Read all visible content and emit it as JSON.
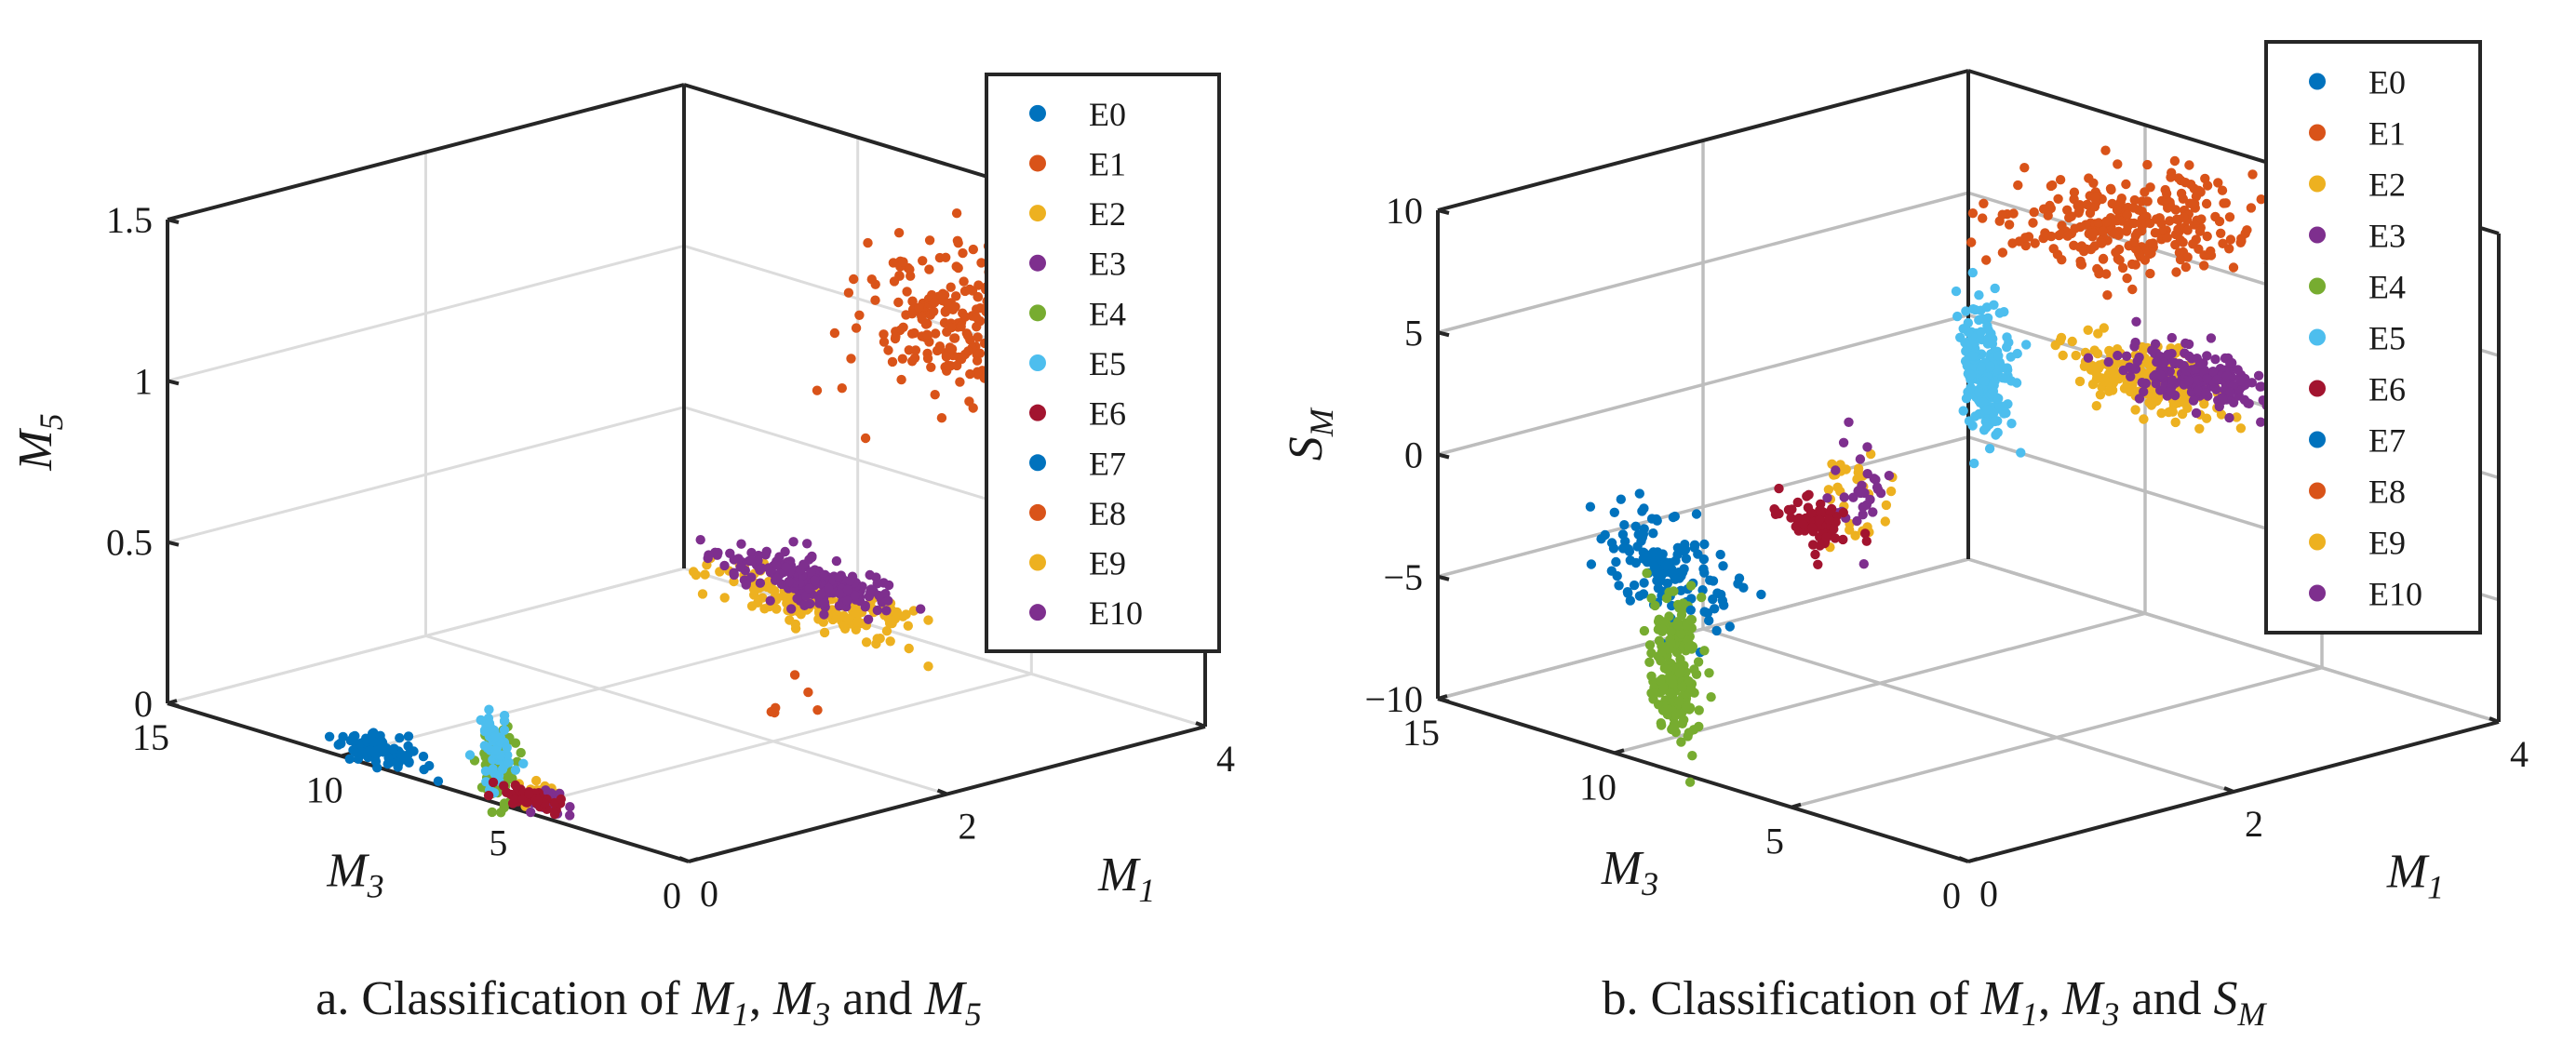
{
  "legend_entries": [
    "E0",
    "E1",
    "E2",
    "E3",
    "E4",
    "E5",
    "E6",
    "E7",
    "E8",
    "E9",
    "E10"
  ],
  "colors": {
    "E0": "#0072BD",
    "E1": "#D95319",
    "E2": "#EDB120",
    "E3": "#7E2F8E",
    "E4": "#77AC30",
    "E5": "#4DBEEE",
    "E6": "#A2142F",
    "E7": "#0072BD",
    "E8": "#D95319",
    "E9": "#EDB120",
    "E10": "#7E2F8E"
  },
  "chart_data": [
    {
      "type": "scatter",
      "caption_prefix": "a. Classification of ",
      "caption_vars": [
        "M1",
        "M3",
        "M5"
      ],
      "caption_text": "a. Classification of M1, M3 and M5",
      "axes": {
        "x": {
          "label": "M1",
          "lim": [
            0,
            4
          ],
          "ticks": [
            "0",
            "2",
            "4"
          ]
        },
        "y": {
          "label": "M3",
          "lim": [
            0,
            15
          ],
          "ticks": [
            "0",
            "5",
            "10",
            "15"
          ]
        },
        "z": {
          "label": "M5",
          "lim": [
            0,
            1.5
          ],
          "ticks": [
            "0",
            "0.5",
            "1",
            "1.5"
          ]
        }
      },
      "grid": true,
      "legend_position": "top-right",
      "clusters": [
        {
          "name": "E0",
          "center": [
            0.08,
            9.2,
            0.03
          ],
          "spread": [
            0.05,
            0.6,
            0.02
          ],
          "count": 70
        },
        {
          "name": "E1",
          "center": [
            3.6,
            5.5,
            1.12
          ],
          "spread": [
            0.25,
            0.9,
            0.12
          ],
          "count": 250
        },
        {
          "name": "E2",
          "center": [
            0.05,
            4.4,
            0.05
          ],
          "spread": [
            0.04,
            0.3,
            0.02
          ],
          "count": 25
        },
        {
          "name": "E3",
          "center": [
            0.05,
            4.2,
            0.04
          ],
          "spread": [
            0.04,
            0.3,
            0.02
          ],
          "count": 25
        },
        {
          "name": "E4",
          "center": [
            0.07,
            5.8,
            0.11
          ],
          "spread": [
            0.04,
            0.2,
            0.06
          ],
          "count": 110
        },
        {
          "name": "E5",
          "center": [
            0.07,
            5.8,
            0.15
          ],
          "spread": [
            0.04,
            0.2,
            0.06
          ],
          "count": 60
        },
        {
          "name": "E6",
          "center": [
            0.07,
            4.9,
            0.03
          ],
          "spread": [
            0.04,
            0.4,
            0.01
          ],
          "count": 50
        },
        {
          "name": "E7",
          "center": [
            0.1,
            9.1,
            0.06
          ],
          "spread": [
            0.05,
            0.4,
            0.02
          ],
          "count": 25
        },
        {
          "name": "E8",
          "center": [
            1.3,
            2.0,
            0.3
          ],
          "spread": [
            0.1,
            0.6,
            0.05
          ],
          "count": 6
        },
        {
          "name": "E9",
          "center": [
            3.8,
            10.5,
            0.06
          ],
          "spread": [
            0.1,
            1.4,
            0.03
          ],
          "count": 200
        },
        {
          "name": "E10",
          "center": [
            3.8,
            10.6,
            0.13
          ],
          "spread": [
            0.1,
            1.3,
            0.03
          ],
          "count": 200
        }
      ]
    },
    {
      "type": "scatter",
      "caption_prefix": "b. Classification of ",
      "caption_vars": [
        "M1",
        "M3",
        "SM"
      ],
      "caption_text": "b. Classification of M1, M3 and SM",
      "axes": {
        "x": {
          "label": "M1",
          "lim": [
            0,
            4
          ],
          "ticks": [
            "0",
            "2",
            "4"
          ]
        },
        "y": {
          "label": "M3",
          "lim": [
            0,
            15
          ],
          "ticks": [
            "0",
            "5",
            "10",
            "15"
          ]
        },
        "z": {
          "label": "SM",
          "lim": [
            -10,
            10
          ],
          "ticks": [
            "−10",
            "−5",
            "0",
            "5",
            "10"
          ]
        }
      },
      "grid": true,
      "legend_position": "top-right",
      "clusters": [
        {
          "name": "E0",
          "center": [
            0.12,
            9.2,
            -2.2
          ],
          "spread": [
            0.05,
            0.8,
            1.2
          ],
          "count": 120
        },
        {
          "name": "E1",
          "center": [
            3.3,
            7.6,
            8.0
          ],
          "spread": [
            0.35,
            1.0,
            0.8
          ],
          "count": 250
        },
        {
          "name": "E2",
          "center": [
            0.05,
            3.5,
            3.5
          ],
          "spread": [
            0.05,
            0.4,
            1.0
          ],
          "count": 30
        },
        {
          "name": "E3",
          "center": [
            0.05,
            3.4,
            3.4
          ],
          "spread": [
            0.05,
            0.4,
            1.0
          ],
          "count": 30
        },
        {
          "name": "E4",
          "center": [
            0.05,
            8.5,
            -6.0
          ],
          "spread": [
            0.05,
            0.3,
            1.4
          ],
          "count": 200
        },
        {
          "name": "E5",
          "center": [
            1.2,
            4.0,
            6.5
          ],
          "spread": [
            0.05,
            0.3,
            1.5
          ],
          "count": 200
        },
        {
          "name": "E6",
          "center": [
            0.05,
            4.5,
            2.0
          ],
          "spread": [
            0.05,
            0.5,
            0.5
          ],
          "count": 60
        },
        {
          "name": "E7",
          "center": [
            0.12,
            7.4,
            -2.6
          ],
          "spread": [
            0.05,
            0.5,
            1.0
          ],
          "count": 15
        },
        {
          "name": "E8",
          "center": [
            3.3,
            7.6,
            8.0
          ],
          "spread": [
            0.5,
            1.5,
            1.0
          ],
          "count": 30
        },
        {
          "name": "E9",
          "center": [
            3.9,
            9.5,
            0.0
          ],
          "spread": [
            0.1,
            1.0,
            0.6
          ],
          "count": 200
        },
        {
          "name": "E10",
          "center": [
            3.9,
            8.2,
            0.6
          ],
          "spread": [
            0.1,
            1.0,
            0.5
          ],
          "count": 200
        }
      ]
    }
  ]
}
